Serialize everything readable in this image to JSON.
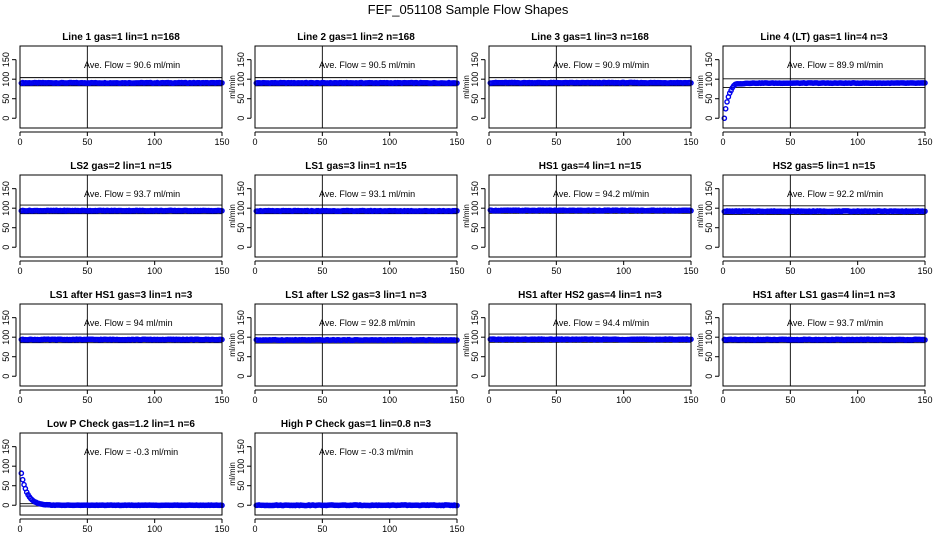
{
  "title": "FEF_051108  Sample Flow Shapes",
  "colors": {
    "points": "#0000ee",
    "axes": "#000000",
    "background": "#ffffff"
  },
  "chart_data": [
    {
      "type": "scatter",
      "title": "Line 1 gas=1 lin=1 n=168",
      "ylabel": "ml/min",
      "xlim": [
        0,
        150
      ],
      "ylim": [
        -25,
        185
      ],
      "xticks": [
        0,
        50,
        100,
        150
      ],
      "yticks": [
        0,
        50,
        100,
        150
      ],
      "vline_x": 50,
      "hlines_y": [
        83,
        104
      ],
      "annotation": "Ave. Flow =  90.6  ml/min",
      "shape": "flat",
      "start_y": 90.6,
      "plateau_y": 90.6,
      "n_points": 150,
      "x_range": [
        1,
        150
      ]
    },
    {
      "type": "scatter",
      "title": "Line 2 gas=1 lin=2 n=168",
      "ylabel": "ml/min",
      "xlim": [
        0,
        150
      ],
      "ylim": [
        -25,
        185
      ],
      "xticks": [
        0,
        50,
        100,
        150
      ],
      "yticks": [
        0,
        50,
        100,
        150
      ],
      "vline_x": 50,
      "hlines_y": [
        83,
        104
      ],
      "annotation": "Ave. Flow =  90.5  ml/min",
      "shape": "flat",
      "start_y": 90.5,
      "plateau_y": 90.5,
      "n_points": 150,
      "x_range": [
        1,
        150
      ]
    },
    {
      "type": "scatter",
      "title": "Line 3 gas=1 lin=3 n=168",
      "ylabel": "ml/min",
      "xlim": [
        0,
        150
      ],
      "ylim": [
        -25,
        185
      ],
      "xticks": [
        0,
        50,
        100,
        150
      ],
      "yticks": [
        0,
        50,
        100,
        150
      ],
      "vline_x": 50,
      "hlines_y": [
        83,
        104
      ],
      "annotation": "Ave. Flow =  90.9  ml/min",
      "shape": "flat",
      "start_y": 90.9,
      "plateau_y": 90.9,
      "n_points": 150,
      "x_range": [
        1,
        150
      ]
    },
    {
      "type": "scatter",
      "title": "Line 4 (LT) gas=1 lin=4 n=3",
      "ylabel": "ml/min",
      "xlim": [
        0,
        150
      ],
      "ylim": [
        -25,
        185
      ],
      "xticks": [
        0,
        50,
        100,
        150
      ],
      "yticks": [
        0,
        50,
        100,
        150
      ],
      "vline_x": 50,
      "hlines_y": [
        79,
        101
      ],
      "annotation": "Ave. Flow =  89.9  ml/min",
      "shape": "rise",
      "start_y": 0,
      "plateau_y": 90,
      "n_points": 150,
      "x_range": [
        1,
        150
      ]
    },
    {
      "type": "scatter",
      "title": "LS2 gas=2 lin=1 n=15",
      "ylabel": "ml/min",
      "xlim": [
        0,
        150
      ],
      "ylim": [
        -25,
        185
      ],
      "xticks": [
        0,
        50,
        100,
        150
      ],
      "yticks": [
        0,
        50,
        100,
        150
      ],
      "vline_x": 50,
      "hlines_y": [
        86,
        108
      ],
      "annotation": "Ave. Flow =  93.7  ml/min",
      "shape": "flat",
      "start_y": 93.7,
      "plateau_y": 93.7,
      "n_points": 150,
      "x_range": [
        1,
        150
      ]
    },
    {
      "type": "scatter",
      "title": "LS1 gas=3 lin=1 n=15",
      "ylabel": "ml/min",
      "xlim": [
        0,
        150
      ],
      "ylim": [
        -25,
        185
      ],
      "xticks": [
        0,
        50,
        100,
        150
      ],
      "yticks": [
        0,
        50,
        100,
        150
      ],
      "vline_x": 50,
      "hlines_y": [
        86,
        108
      ],
      "annotation": "Ave. Flow =  93.1  ml/min",
      "shape": "flat",
      "start_y": 93.1,
      "plateau_y": 93.1,
      "n_points": 150,
      "x_range": [
        1,
        150
      ]
    },
    {
      "type": "scatter",
      "title": "HS1 gas=4 lin=1 n=15",
      "ylabel": "ml/min",
      "xlim": [
        0,
        150
      ],
      "ylim": [
        -25,
        185
      ],
      "xticks": [
        0,
        50,
        100,
        150
      ],
      "yticks": [
        0,
        50,
        100,
        150
      ],
      "vline_x": 50,
      "hlines_y": [
        87,
        108
      ],
      "annotation": "Ave. Flow =  94.2  ml/min",
      "shape": "flat",
      "start_y": 94.2,
      "plateau_y": 94.2,
      "n_points": 150,
      "x_range": [
        1,
        150
      ]
    },
    {
      "type": "scatter",
      "title": "HS2 gas=5 lin=1 n=15",
      "ylabel": "ml/min",
      "xlim": [
        0,
        150
      ],
      "ylim": [
        -25,
        185
      ],
      "xticks": [
        0,
        50,
        100,
        150
      ],
      "yticks": [
        0,
        50,
        100,
        150
      ],
      "vline_x": 50,
      "hlines_y": [
        84,
        106
      ],
      "annotation": "Ave. Flow =  92.2  ml/min",
      "shape": "flat",
      "start_y": 92.2,
      "plateau_y": 92.2,
      "n_points": 150,
      "x_range": [
        1,
        150
      ]
    },
    {
      "type": "scatter",
      "title": "LS1 after HS1 gas=3 lin=1 n=3",
      "ylabel": "ml/min",
      "xlim": [
        0,
        150
      ],
      "ylim": [
        -25,
        185
      ],
      "xticks": [
        0,
        50,
        100,
        150
      ],
      "yticks": [
        0,
        50,
        100,
        150
      ],
      "vline_x": 50,
      "hlines_y": [
        86,
        108
      ],
      "annotation": "Ave. Flow =  94  ml/min",
      "shape": "flat",
      "start_y": 94,
      "plateau_y": 94,
      "n_points": 150,
      "x_range": [
        1,
        150
      ]
    },
    {
      "type": "scatter",
      "title": "LS1 after LS2 gas=3 lin=1 n=3",
      "ylabel": "ml/min",
      "xlim": [
        0,
        150
      ],
      "ylim": [
        -25,
        185
      ],
      "xticks": [
        0,
        50,
        100,
        150
      ],
      "yticks": [
        0,
        50,
        100,
        150
      ],
      "vline_x": 50,
      "hlines_y": [
        85,
        106
      ],
      "annotation": "Ave. Flow =  92.8  ml/min",
      "shape": "flat",
      "start_y": 92.8,
      "plateau_y": 92.8,
      "n_points": 150,
      "x_range": [
        1,
        150
      ]
    },
    {
      "type": "scatter",
      "title": "HS1 after HS2 gas=4 lin=1 n=3",
      "ylabel": "ml/min",
      "xlim": [
        0,
        150
      ],
      "ylim": [
        -25,
        185
      ],
      "xticks": [
        0,
        50,
        100,
        150
      ],
      "yticks": [
        0,
        50,
        100,
        150
      ],
      "vline_x": 50,
      "hlines_y": [
        87,
        108
      ],
      "annotation": "Ave. Flow =  94.4  ml/min",
      "shape": "flat",
      "start_y": 94.4,
      "plateau_y": 94.4,
      "n_points": 150,
      "x_range": [
        1,
        150
      ]
    },
    {
      "type": "scatter",
      "title": "HS1 after LS1 gas=4 lin=1 n=3",
      "ylabel": "ml/min",
      "xlim": [
        0,
        150
      ],
      "ylim": [
        -25,
        185
      ],
      "xticks": [
        0,
        50,
        100,
        150
      ],
      "yticks": [
        0,
        50,
        100,
        150
      ],
      "vline_x": 50,
      "hlines_y": [
        86,
        108
      ],
      "annotation": "Ave. Flow =  93.7  ml/min",
      "shape": "flat",
      "start_y": 93.7,
      "plateau_y": 93.7,
      "n_points": 150,
      "x_range": [
        1,
        150
      ]
    },
    {
      "type": "scatter",
      "title": "Low P Check gas=1.2 lin=1 n=6",
      "ylabel": "ml/min",
      "xlim": [
        0,
        150
      ],
      "ylim": [
        -25,
        185
      ],
      "xticks": [
        0,
        50,
        100,
        150
      ],
      "yticks": [
        0,
        50,
        100,
        150
      ],
      "vline_x": 50,
      "hlines_y": [
        -2,
        4
      ],
      "annotation": "Ave. Flow =  -0.3  ml/min",
      "shape": "decay",
      "start_y": 82,
      "plateau_y": 0,
      "n_points": 150,
      "x_range": [
        1,
        150
      ]
    },
    {
      "type": "scatter",
      "title": "High P Check gas=1 lin=0.8 n=3",
      "ylabel": "ml/min",
      "xlim": [
        0,
        150
      ],
      "ylim": [
        -25,
        185
      ],
      "xticks": [
        0,
        50,
        100,
        150
      ],
      "yticks": [
        0,
        50,
        100,
        150
      ],
      "vline_x": 50,
      "hlines_y": [
        -2,
        4
      ],
      "annotation": "Ave. Flow =  -0.3  ml/min",
      "shape": "flat",
      "start_y": 0,
      "plateau_y": 0,
      "n_points": 150,
      "x_range": [
        1,
        150
      ]
    }
  ]
}
